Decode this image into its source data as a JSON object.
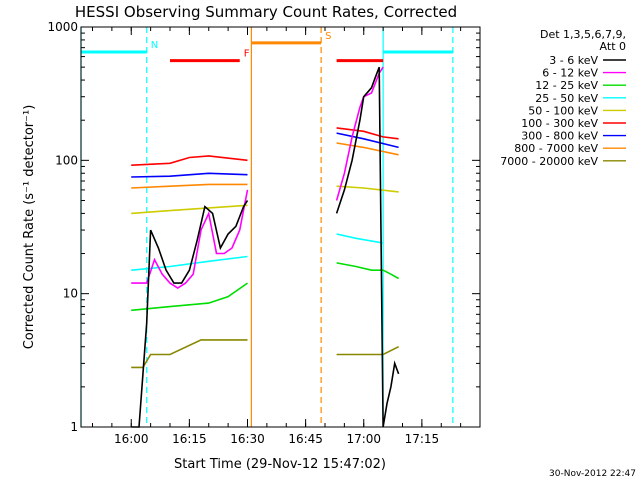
{
  "chart_data": {
    "type": "line",
    "title": "HESSI Observing Summary Count Rates, Corrected",
    "xlabel": "Start Time (29-Nov-12 15:47:02)",
    "ylabel": "Corrected Count Rate (s⁻¹ detector⁻¹)",
    "yscale": "log",
    "ylim": [
      1,
      1000
    ],
    "xlim": [
      "15:47:02",
      "17:30:00"
    ],
    "x_ticks": [
      "16:00",
      "16:15",
      "16:30",
      "16:45",
      "17:00",
      "17:15"
    ],
    "y_ticks": [
      "1",
      "10",
      "100",
      "1000"
    ],
    "legend": {
      "position": "right",
      "header": [
        "Det 1,3,5,6,7,9,",
        "Att 0"
      ],
      "entries": [
        {
          "label": "3 - 6 keV",
          "color": "#000000"
        },
        {
          "label": "6 - 12 keV",
          "color": "#ff00ff"
        },
        {
          "label": "12 - 25 keV",
          "color": "#00dd00"
        },
        {
          "label": "25 - 50 keV",
          "color": "#00ffff"
        },
        {
          "label": "50 - 100 keV",
          "color": "#cccc00"
        },
        {
          "label": "100 - 300 keV",
          "color": "#ff0000"
        },
        {
          "label": "300 - 800 keV",
          "color": "#0000ff"
        },
        {
          "label": "800 - 7000 keV",
          "color": "#ff8800"
        },
        {
          "label": "7000 - 20000 keV",
          "color": "#888800"
        }
      ]
    },
    "flags": [
      {
        "label": "N",
        "color": "#00ffff",
        "segments": [
          [
            "15:47:02",
            "16:04:00"
          ],
          [
            "17:05:00",
            "17:23:00"
          ]
        ],
        "level": 650
      },
      {
        "label": "F",
        "color": "#ff0000",
        "segments": [
          [
            "16:10:00",
            "16:28:00"
          ],
          [
            "16:53:00",
            "17:05:00"
          ]
        ],
        "level": 560
      },
      {
        "label": "S",
        "color": "#ff8800",
        "segments": [
          [
            "16:31:00",
            "16:49:00"
          ]
        ],
        "level": 760
      }
    ],
    "vlines": [
      {
        "time": "15:47:02",
        "color": "#00ffff",
        "style": "solid"
      },
      {
        "time": "16:04:00",
        "color": "#00ffff",
        "style": "dashed"
      },
      {
        "time": "16:31:00",
        "color": "#ff8800",
        "style": "solid"
      },
      {
        "time": "16:49:00",
        "color": "#ff8800",
        "style": "dashed"
      },
      {
        "time": "17:05:00",
        "color": "#00ffff",
        "style": "solid"
      },
      {
        "time": "17:23:00",
        "color": "#00ffff",
        "style": "dashed"
      }
    ],
    "series": [
      {
        "name": "3 - 6 keV",
        "color": "#000000",
        "segments": [
          {
            "x": [
              "16:00",
              "16:02",
              "16:04",
              "16:05",
              "16:07",
              "16:09",
              "16:11",
              "16:13",
              "16:15",
              "16:17",
              "16:19",
              "16:21",
              "16:23",
              "16:25",
              "16:27",
              "16:29",
              "16:30"
            ],
            "y": [
              1,
              1,
              6,
              30,
              22,
              15,
              12,
              12,
              15,
              25,
              45,
              40,
              22,
              28,
              32,
              45,
              50
            ]
          },
          {
            "x": [
              "16:53",
              "16:55",
              "16:57",
              "16:59",
              "17:00",
              "17:02",
              "17:03",
              "17:04",
              "17:05",
              "17:06",
              "17:07",
              "17:08",
              "17:09"
            ],
            "y": [
              40,
              60,
              100,
              200,
              300,
              350,
              420,
              500,
              1,
              1.5,
              2,
              3,
              2.5
            ]
          }
        ]
      },
      {
        "name": "6 - 12 keV",
        "color": "#ff00ff",
        "segments": [
          {
            "x": [
              "16:00",
              "16:04",
              "16:06",
              "16:08",
              "16:10",
              "16:12",
              "16:14",
              "16:16",
              "16:18",
              "16:20",
              "16:22",
              "16:24",
              "16:26",
              "16:28",
              "16:30"
            ],
            "y": [
              12,
              12,
              18,
              14,
              12,
              11,
              12,
              14,
              30,
              40,
              20,
              20,
              22,
              30,
              60
            ]
          },
          {
            "x": [
              "16:53",
              "16:55",
              "16:57",
              "16:59",
              "17:00",
              "17:02",
              "17:04",
              "17:05"
            ],
            "y": [
              50,
              80,
              150,
              250,
              300,
              320,
              450,
              500
            ]
          }
        ]
      },
      {
        "name": "12 - 25 keV",
        "color": "#00dd00",
        "segments": [
          {
            "x": [
              "16:00",
              "16:10",
              "16:20",
              "16:25",
              "16:30"
            ],
            "y": [
              7.5,
              8,
              8.5,
              9.5,
              12
            ]
          },
          {
            "x": [
              "16:53",
              "16:58",
              "17:02",
              "17:05",
              "17:07",
              "17:09"
            ],
            "y": [
              17,
              16,
              15,
              15,
              14,
              13
            ]
          }
        ]
      },
      {
        "name": "25 - 50 keV",
        "color": "#00ffff",
        "segments": [
          {
            "x": [
              "16:00",
              "16:10",
              "16:20",
              "16:30"
            ],
            "y": [
              15,
              16,
              17.5,
              19
            ]
          },
          {
            "x": [
              "16:53",
              "16:58",
              "17:05"
            ],
            "y": [
              28,
              26,
              24
            ]
          }
        ]
      },
      {
        "name": "50 - 100 keV",
        "color": "#cccc00",
        "segments": [
          {
            "x": [
              "16:00",
              "16:10",
              "16:20",
              "16:30"
            ],
            "y": [
              40,
              42,
              44,
              46
            ]
          },
          {
            "x": [
              "16:53",
              "17:00",
              "17:09"
            ],
            "y": [
              64,
              62,
              58
            ]
          }
        ]
      },
      {
        "name": "100 - 300 keV",
        "color": "#ff0000",
        "segments": [
          {
            "x": [
              "16:00",
              "16:10",
              "16:15",
              "16:20",
              "16:30"
            ],
            "y": [
              92,
              95,
              105,
              108,
              100
            ]
          },
          {
            "x": [
              "16:53",
              "17:00",
              "17:05",
              "17:09"
            ],
            "y": [
              175,
              165,
              150,
              145
            ]
          }
        ]
      },
      {
        "name": "300 - 800 keV",
        "color": "#0000ff",
        "segments": [
          {
            "x": [
              "16:00",
              "16:10",
              "16:20",
              "16:30"
            ],
            "y": [
              75,
              76,
              80,
              78
            ]
          },
          {
            "x": [
              "16:53",
              "17:00",
              "17:09"
            ],
            "y": [
              160,
              145,
              125
            ]
          }
        ]
      },
      {
        "name": "800 - 7000 keV",
        "color": "#ff8800",
        "segments": [
          {
            "x": [
              "16:00",
              "16:10",
              "16:20",
              "16:30"
            ],
            "y": [
              62,
              64,
              66,
              66
            ]
          },
          {
            "x": [
              "16:53",
              "17:00",
              "17:09"
            ],
            "y": [
              135,
              125,
              110
            ]
          }
        ]
      },
      {
        "name": "7000 - 20000 keV",
        "color": "#888800",
        "segments": [
          {
            "x": [
              "16:00",
              "16:03",
              "16:05",
              "16:10",
              "16:18",
              "16:30"
            ],
            "y": [
              2.8,
              2.8,
              3.5,
              3.5,
              4.5,
              4.5
            ]
          },
          {
            "x": [
              "16:53",
              "17:00",
              "17:05",
              "17:09"
            ],
            "y": [
              3.5,
              3.5,
              3.5,
              4
            ]
          }
        ]
      }
    ]
  },
  "timestamp": "30-Nov-2012 22:47"
}
